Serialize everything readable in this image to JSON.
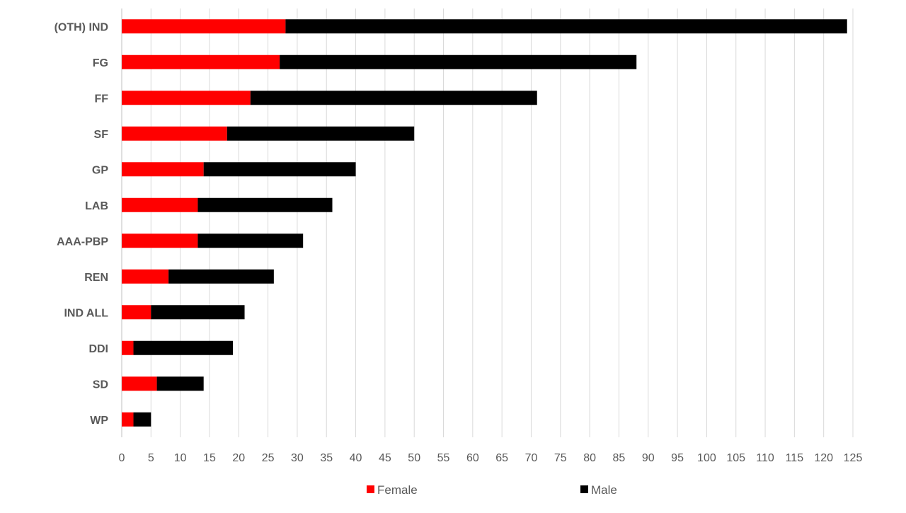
{
  "chart_data": {
    "type": "bar",
    "orientation": "horizontal",
    "stacked": true,
    "categories": [
      "(OTH) IND",
      "FG",
      "FF",
      "SF",
      "GP",
      "LAB",
      "AAA-PBP",
      "REN",
      "IND ALL",
      "DDI",
      "SD",
      "WP"
    ],
    "series": [
      {
        "name": "Female",
        "color": "#ff0000",
        "values": [
          28,
          27,
          22,
          18,
          14,
          13,
          13,
          8,
          5,
          2,
          6,
          2
        ]
      },
      {
        "name": "Male",
        "color": "#000000",
        "values": [
          96,
          61,
          49,
          32,
          26,
          23,
          18,
          18,
          16,
          17,
          8,
          3
        ]
      }
    ],
    "xlim": [
      0,
      125
    ],
    "x_ticks": [
      0,
      5,
      10,
      15,
      20,
      25,
      30,
      35,
      40,
      45,
      50,
      55,
      60,
      65,
      70,
      75,
      80,
      85,
      90,
      95,
      100,
      105,
      110,
      115,
      120,
      125
    ],
    "grid": "vertical",
    "legend_position": "bottom",
    "title": "",
    "xlabel": "",
    "ylabel": ""
  }
}
